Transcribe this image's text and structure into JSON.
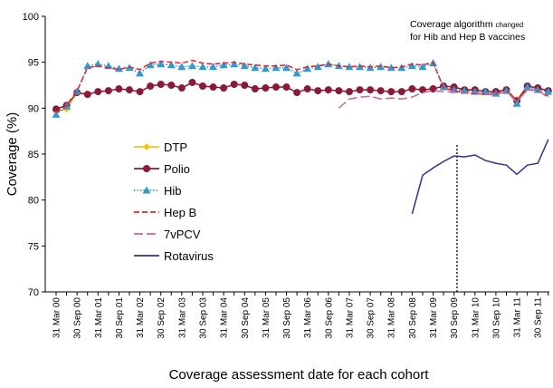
{
  "chart_data": {
    "type": "line",
    "xlabel": "Coverage assessment date for each cohort",
    "ylabel": "Coverage (%)",
    "annotation": [
      "Coverage algorithm ",
      "changed",
      "for Hib and Hep B vaccines"
    ],
    "categories": [
      "31 Mar 00",
      null,
      "30 Sep 00",
      null,
      "31 Mar 01",
      null,
      "30 Sep 01",
      null,
      "31 Mar 02",
      null,
      "30 Sep 02",
      null,
      "31 Mar 03",
      null,
      "30 Sep 03",
      null,
      "31 Mar 04",
      null,
      "30 Sep 04",
      null,
      "31 Mar 05",
      null,
      "30 Sep 05",
      null,
      "31 Mar 06",
      null,
      "30 Sep 06",
      null,
      "31 Mar 07",
      null,
      "30 Sep 07",
      null,
      "31 Mar 08",
      null,
      "30 Sep 08",
      null,
      "31 Mar 09",
      null,
      "30 Sep 09",
      null,
      "31 Mar 10",
      null,
      "30 Sep 10",
      null,
      "31 Mar 11",
      null,
      "30 Sep 11",
      null
    ],
    "ylim": [
      70,
      100
    ],
    "yticks": [
      70,
      75,
      80,
      85,
      90,
      95,
      100
    ],
    "legend": "inside-left",
    "series": [
      {
        "name": "DTP",
        "color": "#f5c518",
        "marker": "diamond",
        "dash": "solid",
        "values": [
          89.7,
          89.9,
          91.7,
          91.5,
          91.8,
          91.9,
          92.1,
          92.0,
          91.8,
          92.4,
          92.6,
          92.5,
          92.2,
          92.8,
          92.4,
          92.3,
          92.2,
          92.6,
          92.5,
          92.1,
          92.2,
          92.3,
          92.3,
          91.7,
          92.1,
          91.9,
          92.0,
          91.9,
          91.8,
          92.0,
          92.0,
          91.9,
          91.8,
          91.8,
          92.1,
          92.0,
          92.1,
          92.4,
          92.3,
          92.0,
          92.0,
          91.8,
          91.8,
          92.0,
          90.9,
          92.4,
          92.2,
          91.9
        ]
      },
      {
        "name": "Polio",
        "color": "#8b1a3a",
        "marker": "circle",
        "dash": "solid",
        "values": [
          89.9,
          90.3,
          91.7,
          91.5,
          91.8,
          91.9,
          92.1,
          92.0,
          91.8,
          92.4,
          92.6,
          92.5,
          92.2,
          92.8,
          92.4,
          92.3,
          92.2,
          92.6,
          92.5,
          92.1,
          92.2,
          92.3,
          92.3,
          91.7,
          92.1,
          91.9,
          92.0,
          91.9,
          91.8,
          92.0,
          92.0,
          91.9,
          91.8,
          91.8,
          92.1,
          92.0,
          92.1,
          92.4,
          92.3,
          92.0,
          92.0,
          91.8,
          91.8,
          92.0,
          90.8,
          92.4,
          92.2,
          91.9
        ]
      },
      {
        "name": "Hib",
        "color": "#3399cc",
        "marker": "triangle",
        "dash": "dotted",
        "values": [
          89.3,
          90.2,
          91.8,
          94.6,
          94.8,
          94.6,
          94.3,
          94.4,
          93.8,
          94.7,
          94.8,
          94.7,
          94.5,
          94.6,
          94.5,
          94.5,
          94.7,
          94.8,
          94.6,
          94.4,
          94.3,
          94.4,
          94.4,
          93.8,
          94.3,
          94.5,
          94.8,
          94.6,
          94.5,
          94.5,
          94.4,
          94.5,
          94.4,
          94.4,
          94.6,
          94.5,
          94.9,
          92.3,
          92.0,
          91.9,
          91.8,
          91.8,
          91.6,
          91.9,
          90.5,
          92.3,
          92.0,
          91.8
        ]
      },
      {
        "name": "Hep B",
        "color": "#e8202a",
        "marker": "none",
        "dash": "dashed",
        "values": [
          89.5,
          90.3,
          91.9,
          94.4,
          94.6,
          94.4,
          94.2,
          94.5,
          94.2,
          94.9,
          95.1,
          95.0,
          94.9,
          95.2,
          94.9,
          94.8,
          94.9,
          95.0,
          94.8,
          94.7,
          94.6,
          94.6,
          94.7,
          94.2,
          94.5,
          94.6,
          94.8,
          94.6,
          94.5,
          94.6,
          94.5,
          94.6,
          94.4,
          94.5,
          94.8,
          94.7,
          95.0,
          92.2,
          91.9,
          91.7,
          91.6,
          91.5,
          91.6,
          91.8,
          90.9,
          92.0,
          91.9,
          91.3
        ]
      },
      {
        "name": "7vPCV",
        "color": "#cc6699",
        "marker": "none",
        "dash": "longdash",
        "values": [
          null,
          null,
          null,
          null,
          null,
          null,
          null,
          null,
          null,
          null,
          null,
          null,
          null,
          null,
          null,
          null,
          null,
          null,
          null,
          null,
          null,
          null,
          null,
          null,
          null,
          null,
          null,
          90.0,
          91.0,
          91.2,
          91.3,
          91.0,
          91.1,
          91.0,
          91.2,
          91.7,
          91.9,
          91.8,
          91.8,
          91.7,
          91.7,
          91.5,
          91.5,
          91.8,
          90.7,
          92.0,
          92.0,
          91.1
        ]
      },
      {
        "name": "Rotavirus",
        "color": "#2e3192",
        "marker": "none",
        "dash": "solid",
        "values": [
          null,
          null,
          null,
          null,
          null,
          null,
          null,
          null,
          null,
          null,
          null,
          null,
          null,
          null,
          null,
          null,
          null,
          null,
          null,
          null,
          null,
          null,
          null,
          null,
          null,
          null,
          null,
          null,
          null,
          null,
          null,
          null,
          null,
          null,
          78.5,
          82.7,
          83.5,
          84.2,
          84.8,
          84.7,
          84.9,
          84.3,
          84.0,
          83.8,
          82.8,
          83.8,
          84.0,
          86.6
        ]
      }
    ]
  }
}
